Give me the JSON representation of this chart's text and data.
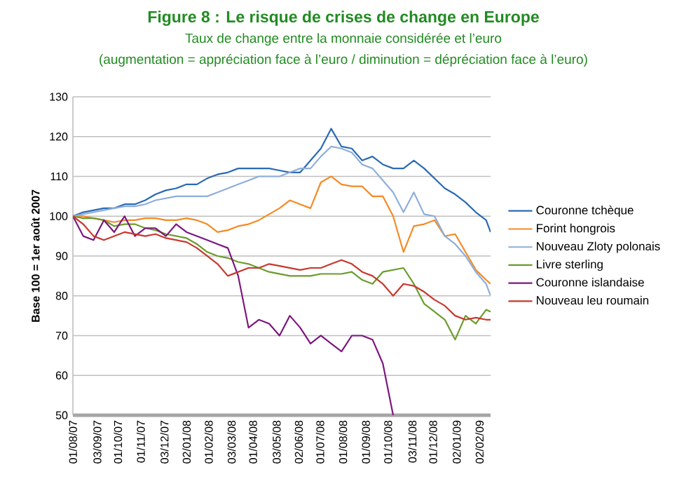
{
  "chart_data": {
    "type": "line",
    "title": "Figure 8 : Le risque de crises de change en Europe",
    "subtitle": "Taux de change entre la monnaie considérée et l’euro",
    "annotations": [
      "(augmentation = appréciation face à l’euro / diminution = dépréciation face à l’euro)"
    ],
    "ylabel": "Base 100 = 1er août 2007",
    "x": [
      "2007-08-01",
      "2007-08-15",
      "2007-08-29",
      "2007-09-12",
      "2007-09-26",
      "2007-10-10",
      "2007-10-24",
      "2007-11-07",
      "2007-11-21",
      "2007-12-05",
      "2007-12-19",
      "2008-01-02",
      "2008-01-16",
      "2008-01-30",
      "2008-02-13",
      "2008-02-27",
      "2008-03-12",
      "2008-03-26",
      "2008-04-09",
      "2008-04-23",
      "2008-05-07",
      "2008-05-21",
      "2008-06-04",
      "2008-06-18",
      "2008-07-02",
      "2008-07-16",
      "2008-07-30",
      "2008-08-13",
      "2008-08-27",
      "2008-09-10",
      "2008-09-24",
      "2008-10-08",
      "2008-10-22",
      "2008-11-05",
      "2008-11-19",
      "2008-12-03",
      "2008-12-17",
      "2008-12-31",
      "2009-01-14",
      "2009-01-28",
      "2009-02-11",
      "2009-02-17"
    ],
    "series": [
      {
        "name": "Couronne tchèque",
        "color": "#2a6ab4",
        "values": [
          100,
          101,
          101.5,
          102,
          102,
          103,
          103,
          104,
          105.5,
          106.5,
          107,
          108,
          108,
          109.5,
          110.5,
          111,
          112,
          112,
          112,
          112,
          111.5,
          111,
          111,
          114,
          117,
          122,
          117.5,
          117,
          114,
          115,
          113,
          112,
          112,
          114,
          112,
          109.5,
          107,
          105.5,
          103.5,
          101,
          99,
          96
        ]
      },
      {
        "name": "Forint hongrois",
        "color": "#f58a25",
        "values": [
          100,
          100,
          99.5,
          99,
          98.5,
          99,
          99,
          99.5,
          99.5,
          99,
          99,
          99.5,
          99,
          98,
          96,
          96.5,
          97.5,
          98,
          99,
          100.5,
          102,
          104,
          103,
          102,
          108.5,
          110,
          108,
          107.5,
          107.5,
          105,
          105,
          100,
          91,
          97.5,
          98,
          99,
          95,
          95.5,
          91,
          86.5,
          84,
          83
        ]
      },
      {
        "name": "Nouveau Zloty polonais",
        "color": "#8eaedb",
        "values": [
          100,
          100.5,
          101,
          101.5,
          102,
          102.5,
          102.5,
          103,
          104,
          104.5,
          105,
          105,
          105,
          105,
          106,
          107,
          108,
          109,
          110,
          110,
          110,
          111,
          112,
          112,
          115,
          117.5,
          117,
          116,
          113,
          112,
          109,
          106,
          101,
          106,
          100.5,
          100,
          95,
          93,
          90,
          86,
          83,
          80
        ]
      },
      {
        "name": "Livre sterling",
        "color": "#6b9c2c",
        "values": [
          100,
          99.5,
          99.5,
          99,
          97.5,
          98,
          98,
          97,
          96.5,
          95.5,
          95,
          94.5,
          93,
          91,
          90,
          89.5,
          88.5,
          88,
          87,
          86,
          85.5,
          85,
          85,
          85,
          85.5,
          85.5,
          85.5,
          86,
          84,
          83,
          86,
          86.5,
          87,
          83,
          78,
          76,
          74,
          69,
          75,
          73,
          76.5,
          76
        ]
      },
      {
        "name": "Couronne islandaise",
        "color": "#7d167e",
        "values": [
          100,
          95,
          94,
          99,
          96,
          100,
          95,
          97,
          97,
          95,
          98,
          96,
          95,
          94,
          93,
          92,
          85,
          72,
          74,
          73,
          70,
          75,
          72,
          68,
          70,
          68,
          66,
          70,
          70,
          69,
          63,
          50,
          null,
          null,
          null,
          null,
          null,
          null,
          null,
          null,
          null,
          null
        ]
      },
      {
        "name": "Nouveau leu roumain",
        "color": "#c8382e",
        "values": [
          100,
          98,
          95,
          94,
          95,
          96,
          95.5,
          95,
          95.5,
          94.5,
          94,
          93.5,
          92,
          90,
          88,
          85,
          86,
          87,
          87,
          88,
          87.5,
          87,
          86.5,
          87,
          87,
          88,
          89,
          88,
          86,
          85,
          83,
          80,
          83,
          82.5,
          81,
          79,
          77.5,
          75,
          74,
          74.5,
          74,
          74
        ]
      }
    ],
    "xlim": [
      "2007-08-01",
      "2009-02-17"
    ],
    "xticks": [
      {
        "value": "2007-08-01",
        "label": "01/08/07"
      },
      {
        "value": "2007-09-03",
        "label": "03/09/07"
      },
      {
        "value": "2007-10-01",
        "label": "01/10/07"
      },
      {
        "value": "2007-11-01",
        "label": "01/11/07"
      },
      {
        "value": "2007-12-03",
        "label": "03/12/07"
      },
      {
        "value": "2008-01-02",
        "label": "02/01/08"
      },
      {
        "value": "2008-02-01",
        "label": "01/02/08"
      },
      {
        "value": "2008-03-03",
        "label": "03/03/08"
      },
      {
        "value": "2008-04-01",
        "label": "01/04/08"
      },
      {
        "value": "2008-05-03",
        "label": "03/05/08"
      },
      {
        "value": "2008-06-02",
        "label": "02/06/08"
      },
      {
        "value": "2008-07-01",
        "label": "01/07/08"
      },
      {
        "value": "2008-08-01",
        "label": "01/08/08"
      },
      {
        "value": "2008-09-01",
        "label": "01/09/08"
      },
      {
        "value": "2008-10-01",
        "label": "01/10/08"
      },
      {
        "value": "2008-11-03",
        "label": "03/11/08"
      },
      {
        "value": "2008-12-01",
        "label": "01/12/08"
      },
      {
        "value": "2009-01-02",
        "label": "02/01/09"
      },
      {
        "value": "2009-02-02",
        "label": "02/02/09"
      }
    ],
    "ylim": [
      50,
      130
    ],
    "yticks": [
      50,
      60,
      70,
      80,
      90,
      100,
      110,
      120,
      130
    ],
    "grid": "y",
    "legend": "right",
    "line_style": "solid",
    "marker": "none"
  }
}
